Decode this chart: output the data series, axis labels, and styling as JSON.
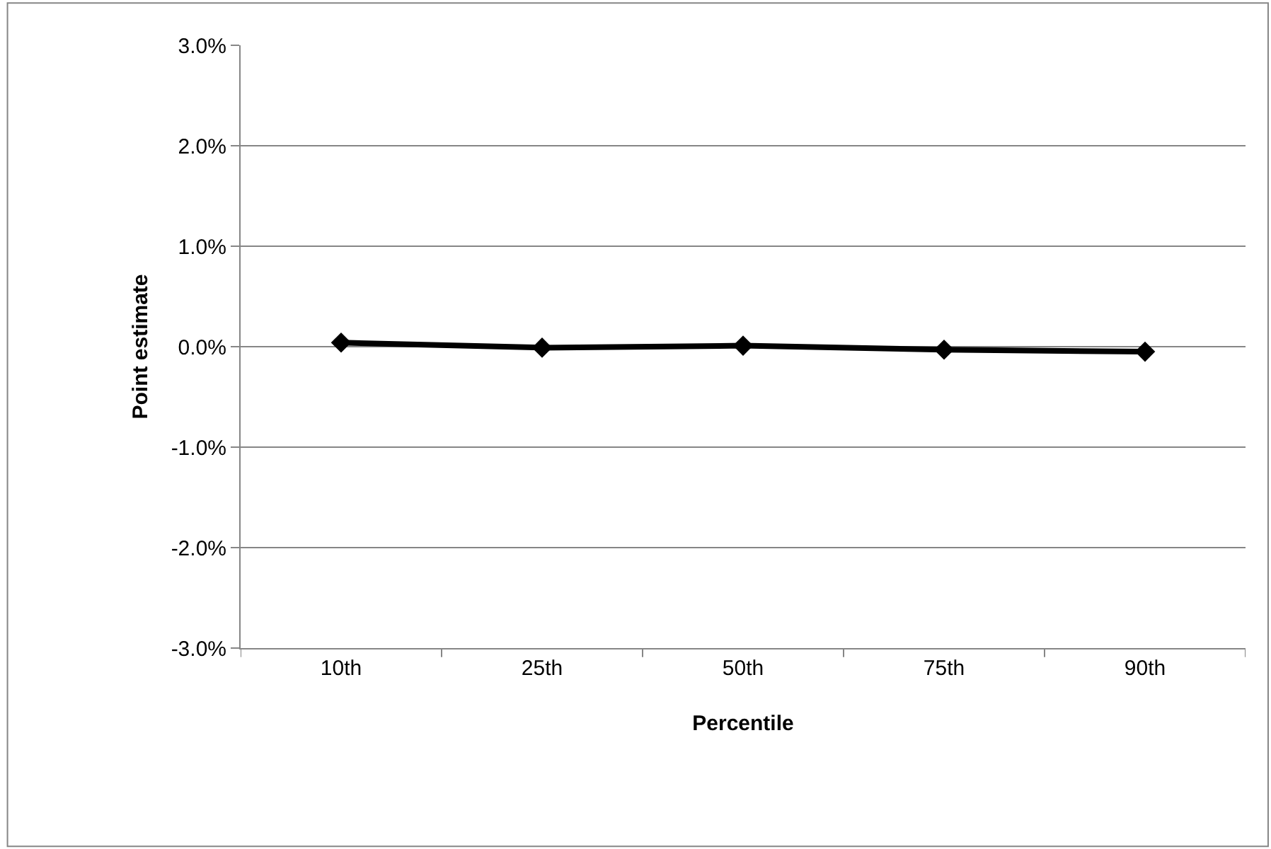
{
  "chart_data": {
    "type": "line",
    "xlabel": "Percentile",
    "ylabel": "Point estimate",
    "categories": [
      "10th",
      "25th",
      "50th",
      "75th",
      "90th"
    ],
    "series": [
      {
        "color": "#000000",
        "values": [
          0.04,
          -0.01,
          0.01,
          -0.03,
          -0.05
        ]
      }
    ],
    "ylim": [
      -3,
      3
    ],
    "yticks": [
      {
        "value": -3,
        "label": "-3.0%"
      },
      {
        "value": -2,
        "label": "-2.0%"
      },
      {
        "value": -1,
        "label": "-1.0%"
      },
      {
        "value": 0,
        "label": "0.0%"
      },
      {
        "value": 1,
        "label": "1.0%"
      },
      {
        "value": 2,
        "label": "2.0%"
      },
      {
        "value": 3,
        "label": "3.0%"
      }
    ],
    "grid": "y",
    "marker": "diamond",
    "line_style": "solid"
  }
}
